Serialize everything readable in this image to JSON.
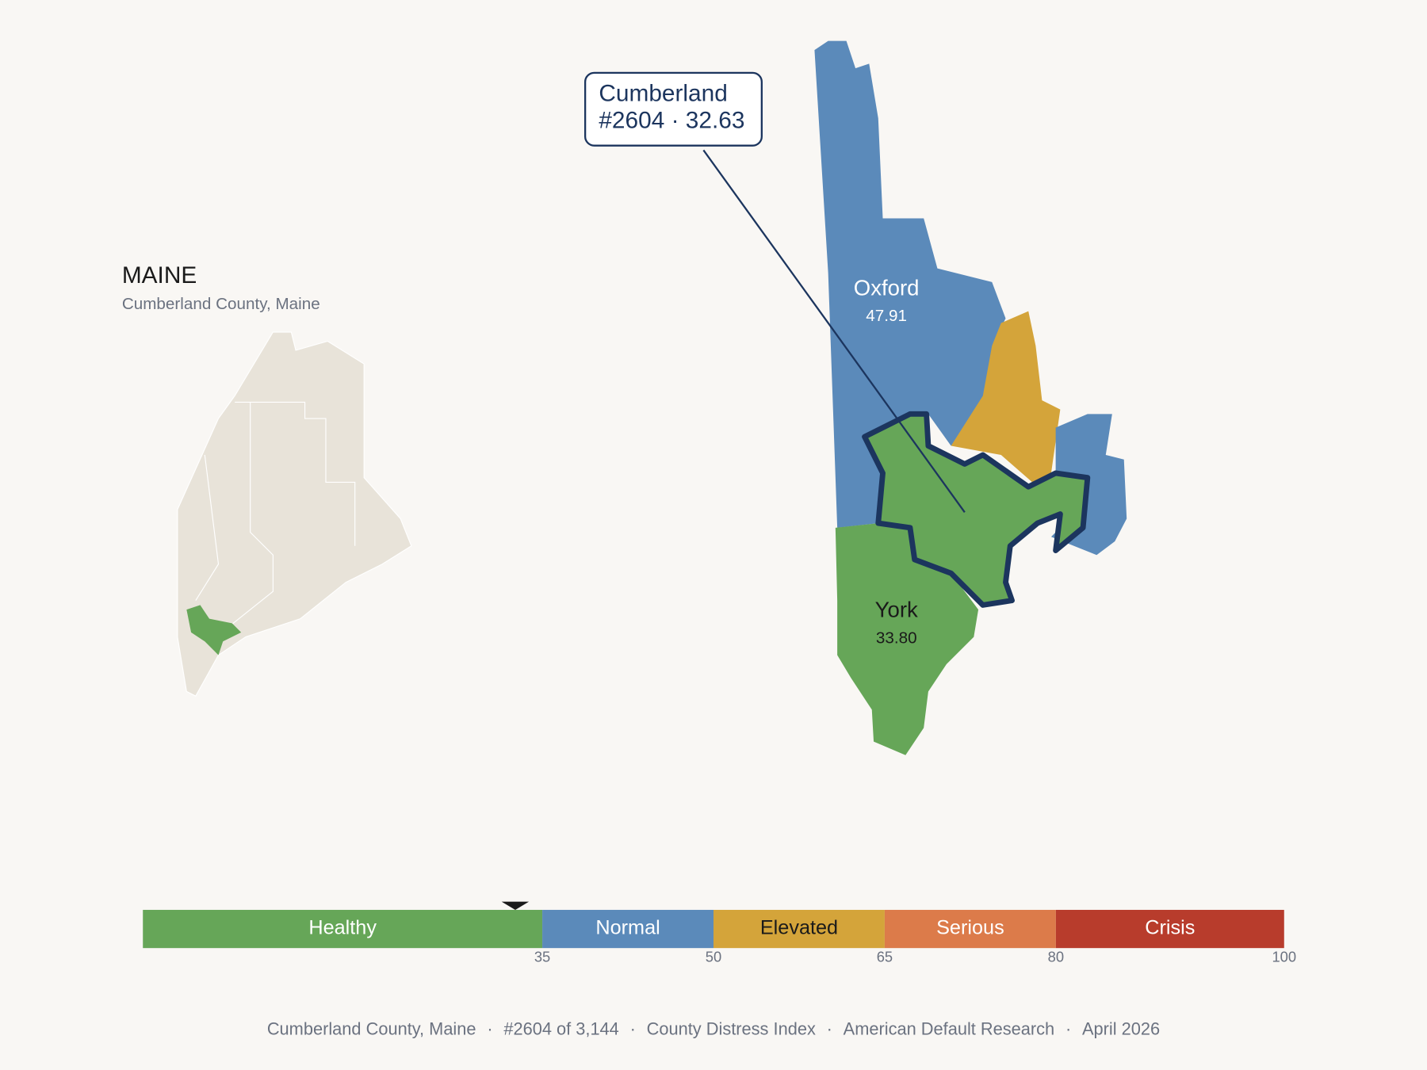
{
  "header": {
    "title": "MAINE",
    "subtitle": "Cumberland County, Maine"
  },
  "regions": [
    {
      "name": "Oxford",
      "score": "47.91"
    },
    {
      "name": "York",
      "score": "33.80"
    }
  ],
  "callout": {
    "name": "Cumberland",
    "detail": "#2604 · 32.63"
  },
  "scale": {
    "range": [
      0,
      100
    ],
    "ticks": [
      35,
      50,
      65,
      80,
      100
    ],
    "marker": 32.63,
    "segments": [
      {
        "label": "Healthy",
        "color": "#66a658"
      },
      {
        "label": "Normal",
        "color": "#5b8aba"
      },
      {
        "label": "Elevated",
        "color": "#d4a43a"
      },
      {
        "label": "Serious",
        "color": "#dc7b4a"
      },
      {
        "label": "Crisis",
        "color": "#b83c2c"
      }
    ]
  },
  "footer": {
    "separator": "·",
    "items": [
      "Cumberland County, Maine",
      "#2604 of 3,144",
      "County Distress Index",
      "American Default Research",
      "April 2026"
    ]
  }
}
